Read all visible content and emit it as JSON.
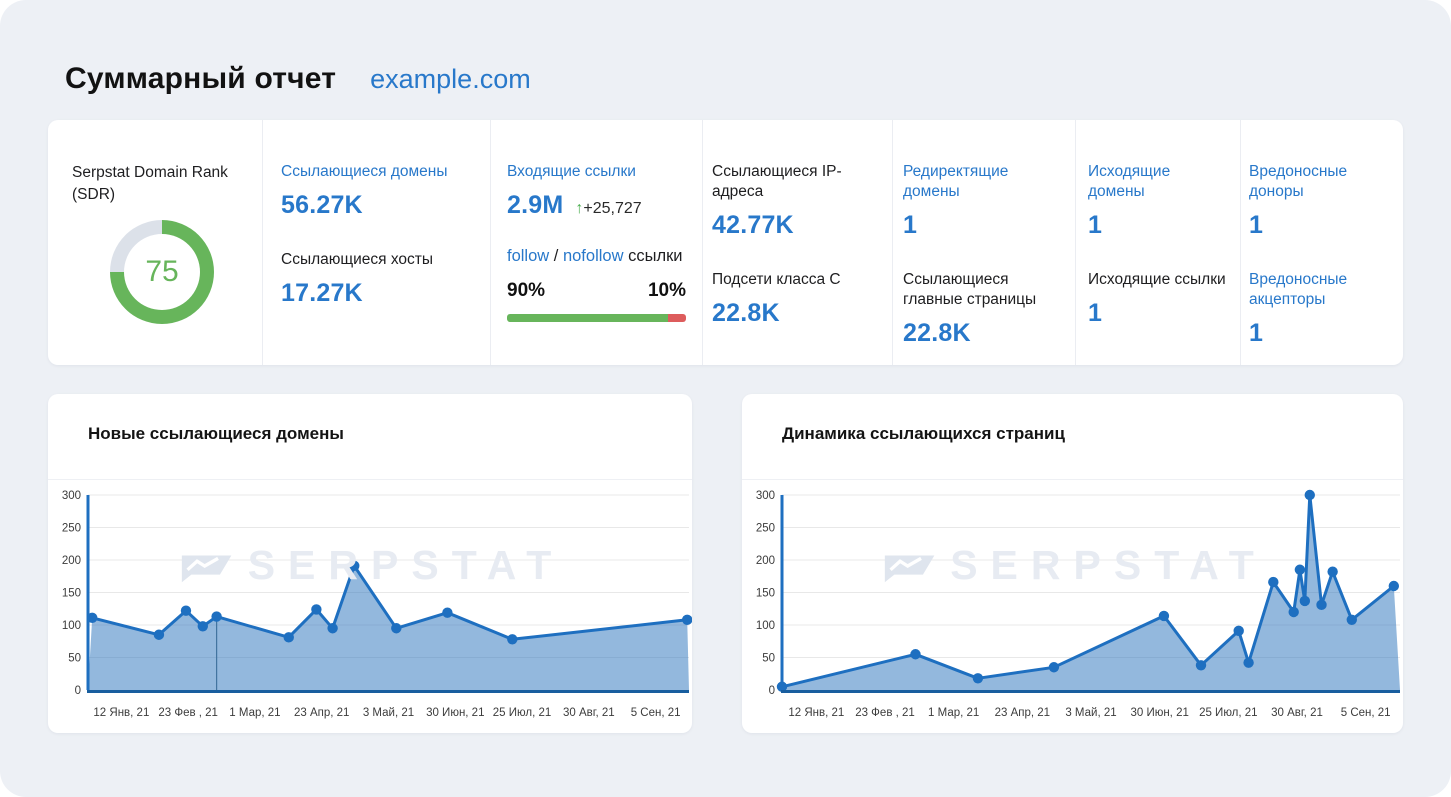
{
  "header": {
    "title": "Суммарный отчет",
    "domain": "example.com"
  },
  "colors": {
    "accent_blue": "#2878ca",
    "donut_green": "#67b55b",
    "donut_rest": "#dce1e9",
    "bar_green": "#67b55b",
    "bar_red": "#dd5c5c",
    "chart_line": "#1e6fc0",
    "chart_fill": "rgba(47,118,190,0.52)"
  },
  "sdr": {
    "label": "Serpstat Domain Rank (SDR)",
    "value": "75",
    "percent": 75
  },
  "stat_columns": [
    {
      "metrics": [
        {
          "label": "Ссылающиеся домены",
          "color": "blue",
          "value": "56.27K"
        },
        {
          "label": "Ссылающиеся хосты",
          "color": "black",
          "value": "17.27K"
        }
      ]
    },
    {
      "metrics": [
        {
          "label": "Ссылающиеся IP-адреса",
          "color": "black",
          "value": "42.77K"
        },
        {
          "label": "Подсети класса C",
          "color": "black",
          "value": "22.8K"
        }
      ]
    },
    {
      "metrics": [
        {
          "label": "Редиректящие домены",
          "color": "blue",
          "value": "1"
        },
        {
          "label": "Ссылающиеся главные страницы",
          "color": "black",
          "value": "22.8K"
        }
      ]
    },
    {
      "metrics": [
        {
          "label": "Исходящие домены",
          "color": "blue",
          "value": "1"
        },
        {
          "label": "Исходящие ссылки",
          "color": "black",
          "value": "1"
        }
      ]
    },
    {
      "metrics": [
        {
          "label": "Вредоносные доноры",
          "color": "blue",
          "value": "1"
        },
        {
          "label": "Вредоносные акцепторы",
          "color": "blue",
          "value": "1"
        }
      ]
    }
  ],
  "incoming": {
    "label": "Входящие ссылки",
    "value": "2.9M",
    "delta_arrow": "↑",
    "delta": "+25,727",
    "follow": "follow",
    "separator": " / ",
    "nofollow": "nofollow",
    "suffix": " ссылки",
    "follow_pct": "90%",
    "nofollow_pct": "10%"
  },
  "charts": [
    {
      "title": "Новые ссылающиеся домены",
      "chart_data": {
        "type": "area",
        "title": "Новые ссылающиеся домены",
        "ylim": [
          0,
          300
        ],
        "y_ticks": [
          0,
          50,
          100,
          150,
          200,
          250,
          300
        ],
        "grid": true,
        "x_tick_labels": [
          "12 Янв, 21",
          "23 Фев , 21",
          "1 Мар, 21",
          "23 Апр, 21",
          "3 Май, 21",
          "30 Июн, 21",
          "25 Июл, 21",
          "30 Авг, 21",
          "5 Сен, 21"
        ],
        "points": [
          [
            0.7,
            111
          ],
          [
            11.8,
            85
          ],
          [
            16.3,
            122
          ],
          [
            19.1,
            98
          ],
          [
            21.4,
            113
          ],
          [
            33.4,
            81
          ],
          [
            38.0,
            124
          ],
          [
            40.7,
            95
          ],
          [
            44.3,
            191
          ],
          [
            51.3,
            95
          ],
          [
            59.8,
            119
          ],
          [
            70.6,
            78
          ],
          [
            99.7,
            108
          ]
        ],
        "marker_index": 4,
        "watermark": "SERPSTAT"
      }
    },
    {
      "title": "Динамика ссылающихся страниц",
      "chart_data": {
        "type": "area",
        "title": "Динамика ссылающихся страниц",
        "ylim": [
          0,
          300
        ],
        "y_ticks": [
          0,
          50,
          100,
          150,
          200,
          250,
          300
        ],
        "grid": true,
        "x_tick_labels": [
          "12 Янв, 21",
          "23 Фев , 21",
          "1 Мар, 21",
          "23 Апр, 21",
          "3 Май, 21",
          "30 Июн, 21",
          "25 Июл, 21",
          "30 Авг, 21",
          "5 Сен, 21"
        ],
        "points": [
          [
            0,
            5
          ],
          [
            21.6,
            55
          ],
          [
            31.7,
            18
          ],
          [
            44.0,
            35
          ],
          [
            61.8,
            114
          ],
          [
            67.8,
            38
          ],
          [
            73.9,
            91
          ],
          [
            75.5,
            42
          ],
          [
            79.5,
            166
          ],
          [
            82.8,
            120
          ],
          [
            83.8,
            185
          ],
          [
            84.6,
            137
          ],
          [
            85.4,
            300
          ],
          [
            87.3,
            131
          ],
          [
            89.1,
            182
          ],
          [
            92.2,
            108
          ],
          [
            99.0,
            160
          ]
        ],
        "marker_index": null,
        "watermark": "SERPSTAT"
      }
    }
  ]
}
